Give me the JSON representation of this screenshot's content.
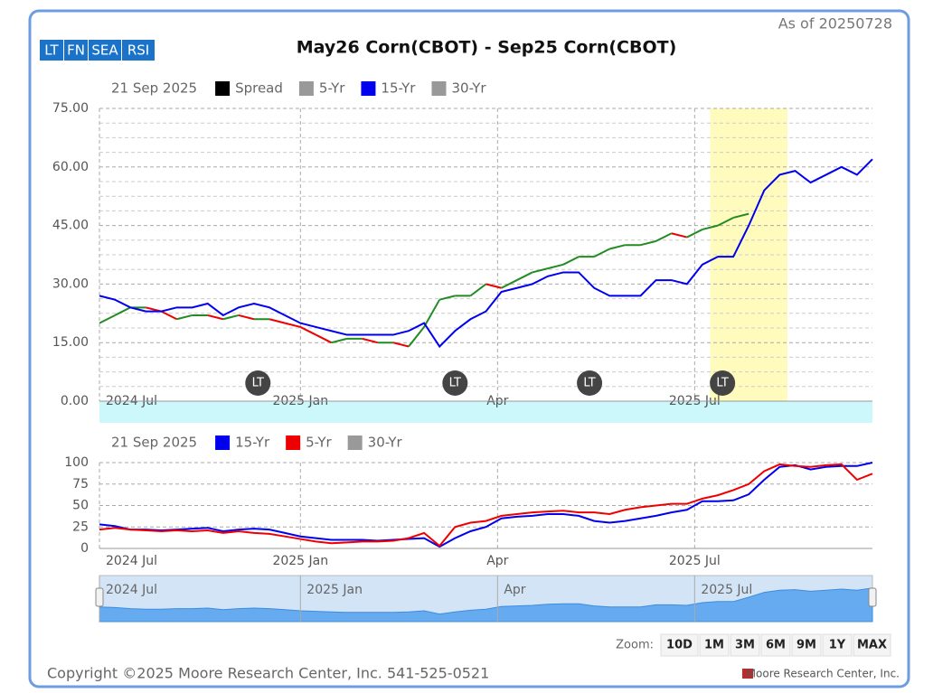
{
  "as_of": "As of 20250728",
  "tabs": [
    "LT",
    "FN",
    "SEA",
    "RSI"
  ],
  "chart_data": [
    {
      "type": "line",
      "title": "May26 Corn(CBOT) - Sep25 Corn(CBOT)",
      "legend_date": "21 Sep 2025",
      "x": [
        0,
        2,
        4,
        6,
        8,
        10,
        12,
        14,
        16,
        18,
        20,
        22,
        24,
        26,
        28,
        30,
        32,
        34,
        36,
        38,
        40,
        42,
        44,
        46,
        48,
        50,
        52,
        54,
        56,
        58,
        60,
        62,
        64,
        66,
        68,
        70,
        72,
        74,
        76,
        78,
        80,
        82,
        84,
        86,
        88,
        90,
        92,
        94,
        96,
        98,
        100
      ],
      "xlim": [
        0,
        100
      ],
      "xticks": [
        {
          "value": 0,
          "label": "2024 Jul"
        },
        {
          "value": 26,
          "label": "2025 Jan"
        },
        {
          "value": 51.5,
          "label": "Apr"
        },
        {
          "value": 77,
          "label": "2025 Jul"
        }
      ],
      "ylim": [
        0,
        75
      ],
      "yticks": [
        {
          "value": 0,
          "label": "0.00"
        },
        {
          "value": 15,
          "label": "15.00"
        },
        {
          "value": 30,
          "label": "30.00"
        },
        {
          "value": 45,
          "label": "45.00"
        },
        {
          "value": 60,
          "label": "60.00"
        },
        {
          "value": 75,
          "label": "75.00"
        }
      ],
      "grid": true,
      "highlight": [
        79,
        89
      ],
      "annotations": [
        {
          "x": 20.5,
          "label": "LT"
        },
        {
          "x": 46,
          "label": "LT"
        },
        {
          "x": 63.4,
          "label": "LT"
        },
        {
          "x": 80.6,
          "label": "LT"
        }
      ],
      "series": [
        {
          "name": "Spread",
          "color": "#000000",
          "up_color": "#228b22",
          "down_color": "#ee0000",
          "values": [
            20,
            22,
            24,
            24,
            23,
            21,
            22,
            22,
            21,
            22,
            21,
            21,
            20,
            19,
            17,
            15,
            16,
            16,
            15,
            15,
            14,
            19,
            26,
            27,
            27,
            30,
            29,
            31,
            33,
            34,
            35,
            37,
            37,
            39,
            40,
            40,
            41,
            43,
            42,
            44,
            45,
            47,
            48,
            null,
            null,
            null,
            null,
            null,
            null,
            null,
            null
          ]
        },
        {
          "name": "5-Yr",
          "color": "#999999"
        },
        {
          "name": "15-Yr",
          "color": "#0000ee",
          "values": [
            27,
            26,
            24,
            23,
            23,
            24,
            24,
            25,
            22,
            24,
            25,
            24,
            22,
            20,
            19,
            18,
            17,
            17,
            17,
            17,
            18,
            20,
            14,
            18,
            21,
            23,
            28,
            29,
            30,
            32,
            33,
            33,
            29,
            27,
            27,
            27,
            31,
            31,
            30,
            35,
            37,
            37,
            45,
            54,
            58,
            59,
            56,
            58,
            60,
            58,
            62
          ]
        },
        {
          "name": "30-Yr",
          "color": "#999999"
        }
      ]
    },
    {
      "type": "line",
      "legend_date": "21 Sep 2025",
      "x": [
        0,
        2,
        4,
        6,
        8,
        10,
        12,
        14,
        16,
        18,
        20,
        22,
        24,
        26,
        28,
        30,
        32,
        34,
        36,
        38,
        40,
        42,
        44,
        46,
        48,
        50,
        52,
        54,
        56,
        58,
        60,
        62,
        64,
        66,
        68,
        70,
        72,
        74,
        76,
        78,
        80,
        82,
        84,
        86,
        88,
        90,
        92,
        94,
        96,
        98,
        100
      ],
      "xlim": [
        0,
        100
      ],
      "xticks": [
        {
          "value": 0,
          "label": "2024 Jul"
        },
        {
          "value": 26,
          "label": "2025 Jan"
        },
        {
          "value": 51.5,
          "label": "Apr"
        },
        {
          "value": 77,
          "label": "2025 Jul"
        }
      ],
      "ylim": [
        0,
        100
      ],
      "yticks": [
        0,
        25,
        50,
        75,
        100
      ],
      "grid": true,
      "series": [
        {
          "name": "15-Yr",
          "color": "#0000ee",
          "values": [
            28,
            26,
            22,
            22,
            21,
            22,
            23,
            24,
            20,
            22,
            23,
            22,
            18,
            14,
            12,
            10,
            10,
            10,
            9,
            10,
            11,
            12,
            2,
            12,
            20,
            25,
            35,
            37,
            38,
            40,
            40,
            38,
            32,
            30,
            32,
            35,
            38,
            42,
            45,
            55,
            55,
            56,
            63,
            80,
            95,
            97,
            92,
            95,
            96,
            96,
            100
          ]
        },
        {
          "name": "5-Yr",
          "color": "#ee0000",
          "values": [
            22,
            24,
            22,
            21,
            20,
            21,
            20,
            21,
            18,
            20,
            18,
            17,
            14,
            11,
            8,
            6,
            7,
            8,
            8,
            9,
            12,
            18,
            3,
            25,
            30,
            32,
            38,
            40,
            42,
            43,
            44,
            42,
            42,
            40,
            45,
            48,
            50,
            52,
            52,
            58,
            62,
            68,
            75,
            90,
            98,
            96,
            95,
            97,
            98,
            80,
            87
          ]
        },
        {
          "name": "30-Yr",
          "color": "#999999"
        }
      ]
    }
  ],
  "navigator": {
    "xticks": [
      {
        "value": 0,
        "label": "2024 Jul"
      },
      {
        "value": 26,
        "label": "2025 Jan"
      },
      {
        "value": 51.5,
        "label": "Apr"
      },
      {
        "value": 77,
        "label": "2025 Jul"
      }
    ]
  },
  "zoom": {
    "label": "Zoom:",
    "buttons": [
      "10D",
      "1M",
      "3M",
      "6M",
      "9M",
      "1Y",
      "MAX"
    ]
  },
  "footer": {
    "copyright": "Copyright ©2025 Moore Research Center, Inc. 541-525-0521",
    "brand": "Moore Research Center, Inc."
  }
}
